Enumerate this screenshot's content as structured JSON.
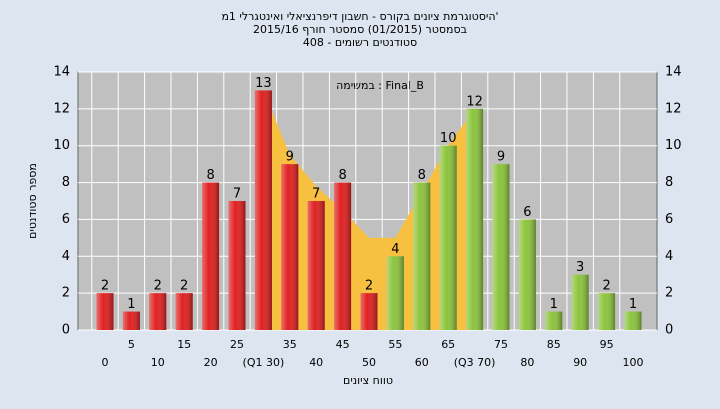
{
  "chart_data": {
    "type": "bar",
    "title": "היסטוגרמת ציונים בקורס - חשבון דיפרנציאלי ואינטגרלי 1מ'",
    "subtitle": "בסמסטר  (01/2015)  סמסטר חורף 2015/16",
    "subtitle2": "סטודנטים רשומים - 408",
    "annotation": "במשימה : Final_B",
    "xlabel": "טווח ציונים",
    "ylabel": "מספר סטודנטים",
    "categories": [
      "0",
      "5",
      "10",
      "15",
      "20",
      "25",
      "(Q1 30)",
      "35",
      "40",
      "45",
      "50",
      "55",
      "60",
      "65",
      "(Q3 70)",
      "75",
      "80",
      "85",
      "90",
      "95",
      "100"
    ],
    "values": [
      2,
      1,
      2,
      2,
      8,
      7,
      13,
      9,
      7,
      8,
      2,
      4,
      8,
      10,
      12,
      9,
      6,
      1,
      3,
      2,
      1
    ],
    "colors": [
      "#e02020",
      "#e02020",
      "#e02020",
      "#e02020",
      "#e02020",
      "#e02020",
      "#e02020",
      "#e02020",
      "#e02020",
      "#e02020",
      "#e02020",
      "#8cc43c",
      "#8cc43c",
      "#8cc43c",
      "#8cc43c",
      "#8cc43c",
      "#8cc43c",
      "#8cc43c",
      "#8cc43c",
      "#8cc43c",
      "#8cc43c"
    ],
    "area": {
      "color": "#f7c040",
      "values": [
        null,
        null,
        null,
        null,
        null,
        null,
        13,
        9.5,
        7.8,
        6.5,
        5,
        5,
        7.5,
        10,
        12,
        null,
        null,
        null,
        null,
        null,
        null
      ]
    },
    "ylim": [
      0,
      14
    ],
    "yticks": [
      0,
      2,
      4,
      6,
      8,
      10,
      12,
      14
    ],
    "grid": true
  }
}
